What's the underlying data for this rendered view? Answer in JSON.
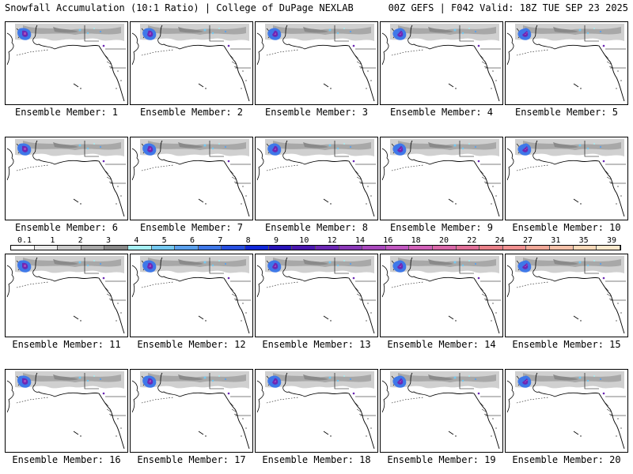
{
  "header": {
    "title_left": "Snowfall Accumulation (10:1 Ratio) | College of DuPage NEXLAB",
    "title_right": "00Z GEFS | F042 Valid: 18Z TUE SEP 23 2025"
  },
  "chart_data": {
    "type": "heatmap",
    "title": "Snowfall Accumulation (10:1 Ratio)",
    "model": "00Z GEFS",
    "forecast_hour": "F042",
    "valid_time": "18Z TUE SEP 23 2025",
    "source": "College of DuPage NEXLAB",
    "units": "in",
    "colorbar": {
      "ticks": [
        "0.1",
        "1",
        "2",
        "3",
        "4",
        "5",
        "6",
        "7",
        "8",
        "9",
        "10",
        "12",
        "14",
        "16",
        "18",
        "20",
        "22",
        "24",
        "27",
        "31",
        "35",
        "39"
      ],
      "colors": [
        "#ffffff",
        "#e8e8e8",
        "#c8c8c8",
        "#a8a8a8",
        "#888888",
        "#a6f0f4",
        "#74c8f0",
        "#5aa0ec",
        "#3f78e8",
        "#2850e0",
        "#1028d8",
        "#2814b8",
        "#4a18b0",
        "#6c28b4",
        "#8a38b8",
        "#a848bc",
        "#c058c0",
        "#d060b8",
        "#d868a8",
        "#e07098",
        "#e88088",
        "#f09090",
        "#f0a898",
        "#f4c0a8",
        "#f8d8b8",
        "#fce8cc"
      ]
    },
    "members": [
      {
        "label": "Ensemble Member: 1"
      },
      {
        "label": "Ensemble Member: 2"
      },
      {
        "label": "Ensemble Member: 3"
      },
      {
        "label": "Ensemble Member: 4"
      },
      {
        "label": "Ensemble Member: 5"
      },
      {
        "label": "Ensemble Member: 6"
      },
      {
        "label": "Ensemble Member: 7"
      },
      {
        "label": "Ensemble Member: 8"
      },
      {
        "label": "Ensemble Member: 9"
      },
      {
        "label": "Ensemble Member: 10"
      },
      {
        "label": "Ensemble Member: 11"
      },
      {
        "label": "Ensemble Member: 12"
      },
      {
        "label": "Ensemble Member: 13"
      },
      {
        "label": "Ensemble Member: 14"
      },
      {
        "label": "Ensemble Member: 15"
      },
      {
        "label": "Ensemble Member: 16"
      },
      {
        "label": "Ensemble Member: 17"
      },
      {
        "label": "Ensemble Member: 18"
      },
      {
        "label": "Ensemble Member: 19"
      },
      {
        "label": "Ensemble Member: 20"
      }
    ]
  }
}
